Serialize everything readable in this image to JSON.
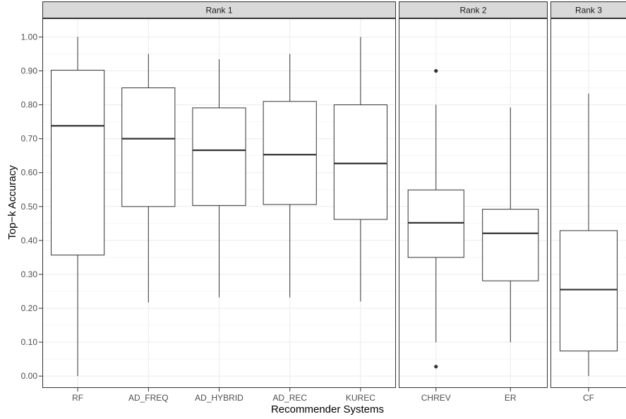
{
  "chart_data": {
    "type": "boxplot",
    "xlabel": "Recommender Systems",
    "ylabel": "Top−k Accuracy",
    "ylim": [
      -0.035,
      1.055
    ],
    "yticks": [
      0.0,
      0.1,
      0.2,
      0.3,
      0.4,
      0.5,
      0.6,
      0.7,
      0.8,
      0.9,
      1.0
    ],
    "ytick_labels": [
      "0.00",
      "0.10",
      "0.20",
      "0.30",
      "0.40",
      "0.50",
      "0.60",
      "0.70",
      "0.80",
      "0.90",
      "1.00"
    ],
    "grid": true,
    "facets": [
      {
        "label": "Rank 1",
        "boxes": [
          {
            "name": "RF",
            "min": 0.0,
            "q1": 0.357,
            "median": 0.738,
            "q3": 0.902,
            "max": 1.0,
            "outliers": []
          },
          {
            "name": "AD_FREQ",
            "min": 0.217,
            "q1": 0.5,
            "median": 0.7,
            "q3": 0.85,
            "max": 0.95,
            "outliers": []
          },
          {
            "name": "AD_HYBRID",
            "min": 0.232,
            "q1": 0.503,
            "median": 0.666,
            "q3": 0.791,
            "max": 0.934,
            "outliers": []
          },
          {
            "name": "AD_REC",
            "min": 0.232,
            "q1": 0.506,
            "median": 0.653,
            "q3": 0.81,
            "max": 0.95,
            "outliers": []
          },
          {
            "name": "KUREC",
            "min": 0.22,
            "q1": 0.462,
            "median": 0.627,
            "q3": 0.8,
            "max": 1.0,
            "outliers": []
          }
        ]
      },
      {
        "label": "Rank 2",
        "boxes": [
          {
            "name": "CHREV",
            "min": 0.1,
            "q1": 0.35,
            "median": 0.452,
            "q3": 0.549,
            "max": 0.8,
            "outliers": [
              0.9,
              0.028
            ]
          },
          {
            "name": "ER",
            "min": 0.1,
            "q1": 0.281,
            "median": 0.421,
            "q3": 0.492,
            "max": 0.792,
            "outliers": []
          }
        ]
      },
      {
        "label": "Rank 3",
        "boxes": [
          {
            "name": "CF",
            "min": 0.0,
            "q1": 0.074,
            "median": 0.255,
            "q3": 0.429,
            "max": 0.833,
            "outliers": []
          }
        ]
      }
    ]
  }
}
